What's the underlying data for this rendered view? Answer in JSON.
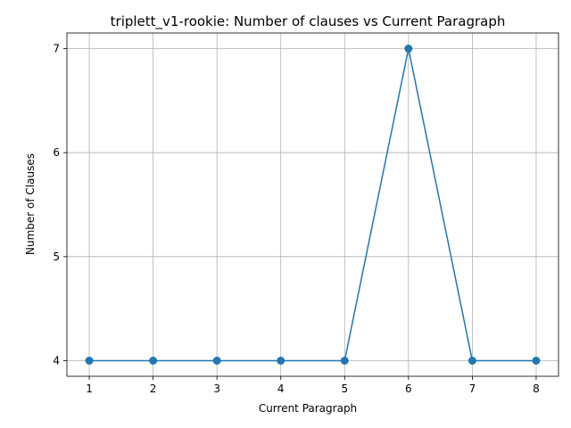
{
  "chart_data": {
    "type": "line",
    "title": "triplett_v1-rookie: Number of clauses vs Current Paragraph",
    "xlabel": "Current Paragraph",
    "ylabel": "Number of Clauses",
    "x": [
      1,
      2,
      3,
      4,
      5,
      6,
      7,
      8
    ],
    "series": [
      {
        "values": [
          4,
          4,
          4,
          4,
          4,
          7,
          4,
          4
        ],
        "color": "#1f77b4",
        "marker": "circle"
      }
    ],
    "xticks": [
      1,
      2,
      3,
      4,
      5,
      6,
      7,
      8
    ],
    "yticks": [
      4,
      5,
      6,
      7
    ],
    "xlim": [
      0.65,
      8.35
    ],
    "ylim": [
      3.85,
      7.15
    ],
    "grid": true,
    "legend": "none"
  }
}
